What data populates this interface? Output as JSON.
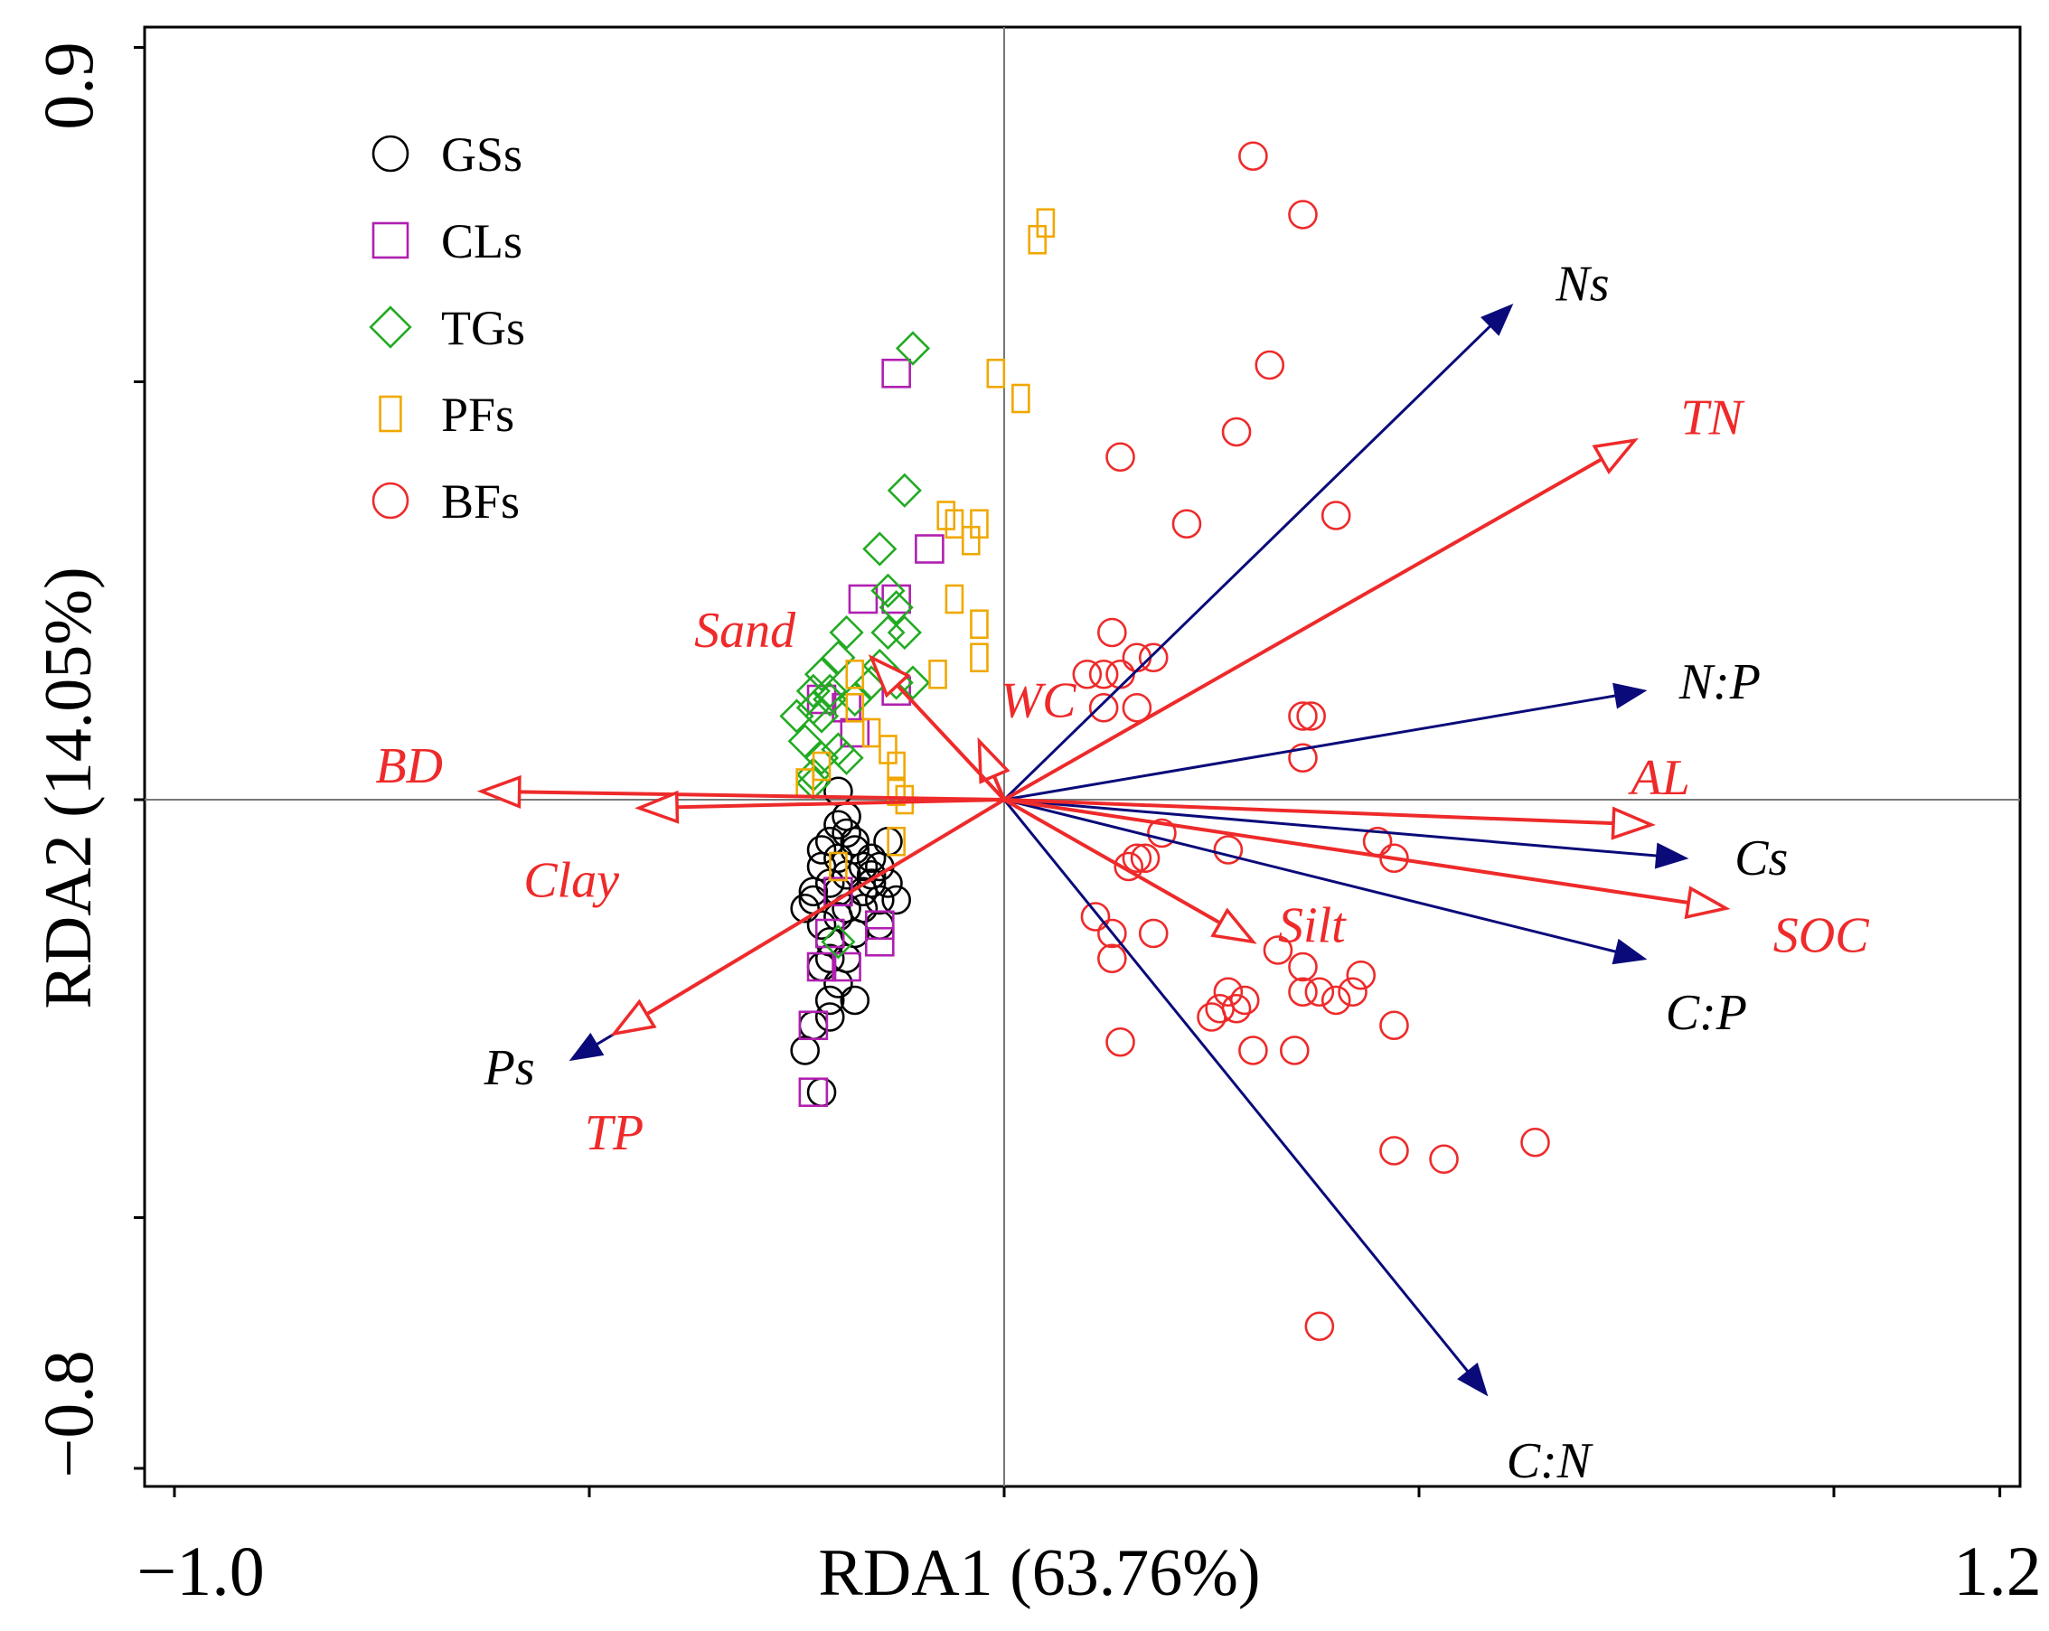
{
  "chart_data": {
    "type": "scatter",
    "subtype": "rda-biplot",
    "xlabel": "RDA1 (63.76%)",
    "ylabel": "RDA2 (14.05%)",
    "xlim": [
      -1.0,
      1.2
    ],
    "ylim": [
      -0.8,
      0.9
    ],
    "xtick_labels": [
      "−1.0",
      "1.2"
    ],
    "ytick_labels": [
      "−0.8",
      "0.9"
    ],
    "legend_position": "top-left",
    "series": [
      {
        "name": "GSs",
        "marker": "circle",
        "color": "#000000",
        "points": [
          [
            -0.2,
            -0.03
          ],
          [
            -0.19,
            -0.04
          ],
          [
            -0.21,
            -0.05
          ],
          [
            -0.22,
            -0.06
          ],
          [
            -0.2,
            -0.07
          ],
          [
            -0.18,
            -0.06
          ],
          [
            -0.17,
            -0.08
          ],
          [
            -0.16,
            -0.09
          ],
          [
            -0.19,
            -0.09
          ],
          [
            -0.21,
            -0.1
          ],
          [
            -0.23,
            -0.12
          ],
          [
            -0.22,
            -0.15
          ],
          [
            -0.2,
            -0.14
          ],
          [
            -0.18,
            -0.16
          ],
          [
            -0.17,
            -0.13
          ],
          [
            -0.15,
            -0.12
          ],
          [
            -0.14,
            -0.1
          ],
          [
            -0.16,
            -0.07
          ],
          [
            -0.18,
            -0.05
          ],
          [
            -0.2,
            -0.11
          ],
          [
            -0.22,
            -0.2
          ],
          [
            -0.21,
            -0.24
          ],
          [
            -0.23,
            -0.27
          ],
          [
            -0.24,
            -0.3
          ],
          [
            -0.19,
            -0.19
          ],
          [
            -0.21,
            -0.17
          ],
          [
            -0.17,
            -0.11
          ],
          [
            -0.15,
            -0.15
          ],
          [
            -0.14,
            -0.05
          ],
          [
            -0.15,
            -0.08
          ],
          [
            -0.13,
            -0.12
          ],
          [
            -0.2,
            -0.22
          ],
          [
            -0.18,
            -0.24
          ],
          [
            -0.19,
            -0.02
          ],
          [
            -0.2,
            0.01
          ],
          [
            -0.22,
            -0.08
          ],
          [
            -0.23,
            -0.11
          ],
          [
            -0.21,
            -0.19
          ],
          [
            -0.16,
            -0.1
          ],
          [
            -0.24,
            -0.13
          ],
          [
            -0.19,
            -0.13
          ],
          [
            -0.21,
            -0.26
          ],
          [
            -0.22,
            -0.35
          ]
        ]
      },
      {
        "name": "CLs",
        "marker": "square",
        "color": "#b01fb0",
        "points": [
          [
            -0.13,
            0.51
          ],
          [
            -0.09,
            0.3
          ],
          [
            -0.17,
            0.24
          ],
          [
            -0.13,
            0.24
          ],
          [
            -0.13,
            0.13
          ],
          [
            -0.22,
            0.12
          ],
          [
            -0.19,
            0.11
          ],
          [
            -0.18,
            0.08
          ],
          [
            -0.15,
            -0.15
          ],
          [
            -0.15,
            -0.17
          ],
          [
            -0.2,
            -0.11
          ],
          [
            -0.21,
            -0.16
          ],
          [
            -0.22,
            -0.2
          ],
          [
            -0.23,
            -0.27
          ],
          [
            -0.23,
            -0.35
          ],
          [
            -0.19,
            -0.2
          ]
        ]
      },
      {
        "name": "TGs",
        "marker": "diamond",
        "color": "#22aa22",
        "points": [
          [
            -0.11,
            0.54
          ],
          [
            -0.12,
            0.37
          ],
          [
            -0.15,
            0.3
          ],
          [
            -0.14,
            0.25
          ],
          [
            -0.13,
            0.23
          ],
          [
            -0.19,
            0.2
          ],
          [
            -0.22,
            0.15
          ],
          [
            -0.2,
            0.17
          ],
          [
            -0.21,
            0.13
          ],
          [
            -0.23,
            0.11
          ],
          [
            -0.22,
            0.1
          ],
          [
            -0.18,
            0.12
          ],
          [
            -0.16,
            0.14
          ],
          [
            -0.15,
            0.16
          ],
          [
            -0.13,
            0.14
          ],
          [
            -0.14,
            0.2
          ],
          [
            -0.12,
            0.2
          ],
          [
            -0.11,
            0.14
          ],
          [
            -0.2,
            0.06
          ],
          [
            -0.19,
            0.05
          ],
          [
            -0.22,
            0.05
          ],
          [
            -0.23,
            0.02
          ],
          [
            -0.24,
            0.07
          ],
          [
            -0.23,
            0.03
          ],
          [
            -0.25,
            0.1
          ],
          [
            -0.23,
            0.13
          ],
          [
            -0.21,
            0.12
          ],
          [
            -0.2,
            -0.17
          ]
        ]
      },
      {
        "name": "PFs",
        "marker": "rect",
        "color": "#f0a800",
        "points": [
          [
            0.04,
            0.67
          ],
          [
            0.05,
            0.69
          ],
          [
            -0.01,
            0.51
          ],
          [
            0.02,
            0.48
          ],
          [
            -0.07,
            0.34
          ],
          [
            -0.06,
            0.33
          ],
          [
            -0.03,
            0.33
          ],
          [
            -0.04,
            0.31
          ],
          [
            -0.06,
            0.24
          ],
          [
            -0.03,
            0.21
          ],
          [
            -0.03,
            0.17
          ],
          [
            -0.08,
            0.15
          ],
          [
            -0.18,
            0.15
          ],
          [
            -0.16,
            0.08
          ],
          [
            -0.14,
            0.06
          ],
          [
            -0.13,
            0.04
          ],
          [
            -0.13,
            0.01
          ],
          [
            -0.12,
            0.0
          ],
          [
            -0.22,
            0.04
          ],
          [
            -0.24,
            0.02
          ],
          [
            -0.13,
            -0.05
          ],
          [
            -0.2,
            -0.08
          ],
          [
            -0.18,
            0.11
          ]
        ]
      },
      {
        "name": "BFs",
        "marker": "circle",
        "color": "#ee2a2a",
        "points": [
          [
            0.3,
            0.77
          ],
          [
            0.36,
            0.7
          ],
          [
            0.32,
            0.52
          ],
          [
            0.28,
            0.44
          ],
          [
            0.14,
            0.41
          ],
          [
            0.22,
            0.33
          ],
          [
            0.4,
            0.34
          ],
          [
            0.13,
            0.2
          ],
          [
            0.18,
            0.17
          ],
          [
            0.1,
            0.15
          ],
          [
            0.12,
            0.15
          ],
          [
            0.14,
            0.15
          ],
          [
            0.16,
            0.17
          ],
          [
            0.12,
            0.11
          ],
          [
            0.16,
            0.11
          ],
          [
            0.36,
            0.1
          ],
          [
            0.37,
            0.1
          ],
          [
            0.36,
            0.05
          ],
          [
            0.19,
            -0.04
          ],
          [
            0.27,
            -0.06
          ],
          [
            0.45,
            -0.05
          ],
          [
            0.47,
            -0.07
          ],
          [
            0.16,
            -0.07
          ],
          [
            0.17,
            -0.07
          ],
          [
            0.15,
            -0.08
          ],
          [
            0.11,
            -0.14
          ],
          [
            0.13,
            -0.16
          ],
          [
            0.18,
            -0.16
          ],
          [
            0.13,
            -0.19
          ],
          [
            0.33,
            -0.18
          ],
          [
            0.36,
            -0.2
          ],
          [
            0.36,
            -0.23
          ],
          [
            0.38,
            -0.23
          ],
          [
            0.4,
            -0.24
          ],
          [
            0.43,
            -0.21
          ],
          [
            0.42,
            -0.23
          ],
          [
            0.27,
            -0.23
          ],
          [
            0.28,
            -0.25
          ],
          [
            0.29,
            -0.24
          ],
          [
            0.26,
            -0.25
          ],
          [
            0.25,
            -0.26
          ],
          [
            0.47,
            -0.27
          ],
          [
            0.14,
            -0.29
          ],
          [
            0.3,
            -0.3
          ],
          [
            0.35,
            -0.3
          ],
          [
            0.47,
            -0.42
          ],
          [
            0.53,
            -0.43
          ],
          [
            0.64,
            -0.41
          ],
          [
            0.38,
            -0.63
          ]
        ]
      }
    ],
    "vectors": [
      {
        "label": "Ns",
        "group": "response",
        "color": "#0a0a7a",
        "head": "filled",
        "end": [
          0.61,
          0.59
        ]
      },
      {
        "label": "N:P",
        "group": "response",
        "color": "#0a0a7a",
        "head": "filled",
        "end": [
          0.77,
          0.13
        ]
      },
      {
        "label": "Cs",
        "group": "response",
        "color": "#0a0a7a",
        "head": "filled",
        "end": [
          0.82,
          -0.07
        ]
      },
      {
        "label": "C:P",
        "group": "response",
        "color": "#0a0a7a",
        "head": "filled",
        "end": [
          0.77,
          -0.19
        ]
      },
      {
        "label": "C:N",
        "group": "response",
        "color": "#0a0a7a",
        "head": "filled",
        "end": [
          0.58,
          -0.71
        ]
      },
      {
        "label": "Ps",
        "group": "response",
        "color": "#0a0a7a",
        "head": "filled",
        "end": [
          -0.52,
          -0.31
        ]
      },
      {
        "label": "TN",
        "group": "explanatory",
        "color": "#ee2a2a",
        "head": "open",
        "end": [
          0.76,
          0.43
        ]
      },
      {
        "label": "AL",
        "group": "explanatory",
        "color": "#ee2a2a",
        "head": "open",
        "end": [
          0.78,
          -0.03
        ]
      },
      {
        "label": "SOC",
        "group": "explanatory",
        "color": "#ee2a2a",
        "head": "open",
        "end": [
          0.87,
          -0.13
        ]
      },
      {
        "label": "Silt",
        "group": "explanatory",
        "color": "#ee2a2a",
        "head": "open",
        "end": [
          0.3,
          -0.17
        ]
      },
      {
        "label": "WC",
        "group": "explanatory",
        "color": "#ee2a2a",
        "head": "open",
        "end": [
          -0.03,
          0.07
        ]
      },
      {
        "label": "Sand",
        "group": "explanatory",
        "color": "#ee2a2a",
        "head": "open",
        "end": [
          -0.16,
          0.17
        ]
      },
      {
        "label": "BD",
        "group": "explanatory",
        "color": "#ee2a2a",
        "head": "open",
        "end": [
          -0.63,
          0.01
        ]
      },
      {
        "label": "Clay",
        "group": "explanatory",
        "color": "#ee2a2a",
        "head": "open",
        "end": [
          -0.44,
          -0.01
        ]
      },
      {
        "label": "TP",
        "group": "explanatory",
        "color": "#ee2a2a",
        "head": "open",
        "end": [
          -0.47,
          -0.28
        ]
      }
    ]
  }
}
